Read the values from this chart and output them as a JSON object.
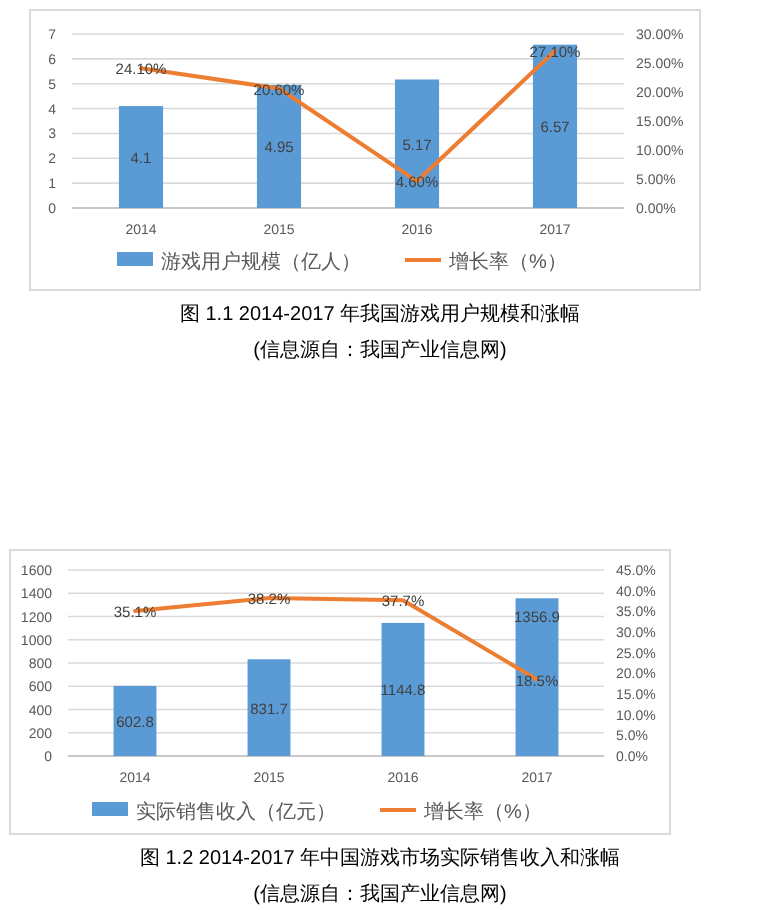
{
  "chart_data": [
    {
      "type": "bar",
      "title": "图 1.1 2014-2017 年我国游戏用户规模和涨幅",
      "annotations": [
        "(信息源自：我国产业信息网)"
      ],
      "categories": [
        "2014",
        "2015",
        "2016",
        "2017"
      ],
      "series": [
        {
          "name": "游戏用户规模（亿人）",
          "color": "#5b9bd5",
          "values": [
            4.1,
            4.95,
            5.17,
            6.57
          ]
        },
        {
          "name": "增长率（%）",
          "type": "line",
          "axis": "y2",
          "color": "#ed7d31",
          "values": [
            24.1,
            20.6,
            4.6,
            27.1
          ],
          "value_labels": [
            "24.10%",
            "20.60%",
            "4.60%",
            "27.10%"
          ]
        }
      ],
      "ylim": [
        0,
        7
      ],
      "yticks": [
        0,
        1,
        2,
        3,
        4,
        5,
        6,
        7
      ],
      "y2lim": [
        0,
        30
      ],
      "y2ticks": [
        {
          "value": 0,
          "label": "0.00%"
        },
        {
          "value": 5,
          "label": "5.00%"
        },
        {
          "value": 10,
          "label": "10.00%"
        },
        {
          "value": 15,
          "label": "15.00%"
        },
        {
          "value": 20,
          "label": "20.00%"
        },
        {
          "value": 25,
          "label": "25.00%"
        },
        {
          "value": 30,
          "label": "30.00%"
        }
      ],
      "grid": "y",
      "legend": "bottom",
      "marker": "none",
      "data_labels": true
    },
    {
      "type": "bar",
      "title": "图 1.2 2014-2017 年中国游戏市场实际销售收入和涨幅",
      "annotations": [
        "(信息源自：我国产业信息网)"
      ],
      "categories": [
        "2014",
        "2015",
        "2016",
        "2017"
      ],
      "series": [
        {
          "name": "实际销售收入（亿元）",
          "color": "#5b9bd5",
          "values": [
            602.8,
            831.7,
            1144.8,
            1356.9
          ]
        },
        {
          "name": "增长率（%）",
          "type": "line",
          "axis": "y2",
          "color": "#ed7d31",
          "values": [
            35.1,
            38.2,
            37.7,
            18.5
          ],
          "value_labels": [
            "35.1%",
            "38.2%",
            "37.7%",
            "18.5%"
          ]
        }
      ],
      "ylim": [
        0,
        1600
      ],
      "yticks": [
        0,
        200,
        400,
        600,
        800,
        1000,
        1200,
        1400,
        1600
      ],
      "y2lim": [
        0,
        45
      ],
      "y2ticks": [
        {
          "value": 0,
          "label": "0.0%"
        },
        {
          "value": 5,
          "label": "5.0%"
        },
        {
          "value": 10,
          "label": "10.0%"
        },
        {
          "value": 15,
          "label": "15.0%"
        },
        {
          "value": 20,
          "label": "20.0%"
        },
        {
          "value": 25,
          "label": "25.0%"
        },
        {
          "value": 30,
          "label": "30.0%"
        },
        {
          "value": 35,
          "label": "35.0%"
        },
        {
          "value": 40,
          "label": "40.0%"
        },
        {
          "value": 45,
          "label": "45.0%"
        }
      ],
      "grid": "y",
      "legend": "bottom",
      "marker": "none",
      "data_labels": true
    }
  ]
}
